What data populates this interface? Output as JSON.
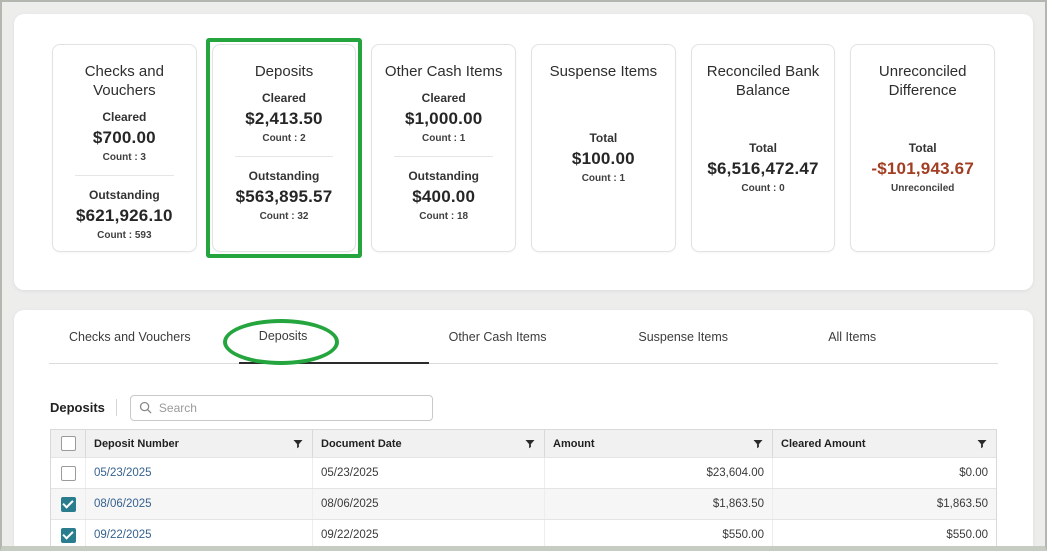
{
  "colors": {
    "annotation_green": "#24a53e",
    "negative_red": "#a23e24",
    "checkbox_teal": "#2a7d8e",
    "link_blue": "#35618e"
  },
  "cards": [
    {
      "title": "Checks and Vouchers",
      "highlighted": false,
      "sections": [
        {
          "label": "Cleared",
          "amount": "$700.00",
          "count": "Count : 3"
        },
        {
          "label": "Outstanding",
          "amount": "$621,926.10",
          "count": "Count : 593"
        }
      ]
    },
    {
      "title": "Deposits",
      "highlighted": true,
      "sections": [
        {
          "label": "Cleared",
          "amount": "$2,413.50",
          "count": "Count : 2"
        },
        {
          "label": "Outstanding",
          "amount": "$563,895.57",
          "count": "Count : 32"
        }
      ]
    },
    {
      "title": "Other Cash Items",
      "highlighted": false,
      "sections": [
        {
          "label": "Cleared",
          "amount": "$1,000.00",
          "count": "Count : 1"
        },
        {
          "label": "Outstanding",
          "amount": "$400.00",
          "count": "Count : 18"
        }
      ]
    },
    {
      "title": "Suspense Items",
      "highlighted": false,
      "sections": [
        {
          "label": "Total",
          "amount": "$100.00",
          "count": "Count : 1"
        }
      ]
    },
    {
      "title": "Reconciled Bank Balance",
      "highlighted": false,
      "sections": [
        {
          "label": "Total",
          "amount": "$6,516,472.47",
          "count": "Count : 0"
        }
      ]
    },
    {
      "title": "Unreconciled Difference",
      "highlighted": false,
      "sections": [
        {
          "label": "Total",
          "amount": "-$101,943.67",
          "count": "Unreconciled",
          "negative": true
        }
      ]
    }
  ],
  "tabs": [
    {
      "label": "Checks and Vouchers",
      "active": false
    },
    {
      "label": "Deposits",
      "active": true,
      "annotated": true
    },
    {
      "label": "Other Cash Items",
      "active": false
    },
    {
      "label": "Suspense Items",
      "active": false
    },
    {
      "label": "All Items",
      "active": false
    }
  ],
  "table": {
    "section_title": "Deposits",
    "search_placeholder": "Search",
    "columns": [
      "Deposit Number",
      "Document Date",
      "Amount",
      "Cleared Amount"
    ],
    "rows": [
      {
        "checked": false,
        "deposit_number": "05/23/2025",
        "document_date": "05/23/2025",
        "amount": "$23,604.00",
        "cleared_amount": "$0.00"
      },
      {
        "checked": true,
        "deposit_number": "08/06/2025",
        "document_date": "08/06/2025",
        "amount": "$1,863.50",
        "cleared_amount": "$1,863.50"
      },
      {
        "checked": true,
        "deposit_number": "09/22/2025",
        "document_date": "09/22/2025",
        "amount": "$550.00",
        "cleared_amount": "$550.00"
      }
    ]
  },
  "icons": {
    "search": "magnifier",
    "filter": "funnel",
    "checkbox_check": "checkmark"
  }
}
